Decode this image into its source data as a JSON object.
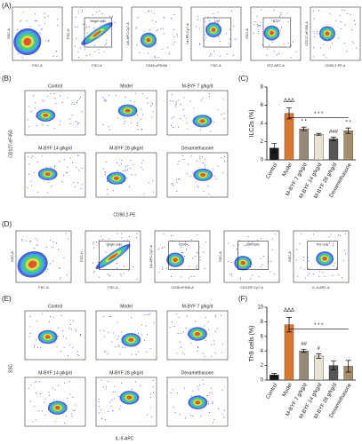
{
  "panels": {
    "a": {
      "label": "(A)",
      "plots": [
        {
          "x_label": "FSC-A",
          "y_label": "SSC-A"
        },
        {
          "x_label": "FSC-A",
          "y_label": "FSC-H",
          "gate": "Single cells"
        },
        {
          "x_label": "CD45-eF506A",
          "y_label": "Lin-APC-Cy7-A"
        },
        {
          "x_label": "FSC-A",
          "y_label": "Lin-PE-Cy7-A",
          "gate": "Lin-"
        },
        {
          "x_label": "ST2-APC-A",
          "y_label": "SSC-A",
          "gate": "ST2+"
        },
        {
          "x_label": "CD90.2-PE-A",
          "y_label": "CD127-eF450-A"
        }
      ]
    },
    "b": {
      "label": "(B)",
      "groups": [
        "Control",
        "Model",
        "M-BYF 7 g/kg/d",
        "M-BYF 14 g/kg/d",
        "M-BYF 28 g/kg/d",
        "Dexamethasone"
      ],
      "x_label": "CD90.2-PE",
      "y_label": "CD127-eF450"
    },
    "c": {
      "label": "(C)"
    },
    "d": {
      "label": "(D)",
      "plots": [
        {
          "x_label": "FSC-A",
          "y_label": "SSC-A"
        },
        {
          "x_label": "FSC-A",
          "y_label": "FSC-H",
          "gate": "Single cells"
        },
        {
          "x_label": "CD45-eF506-A",
          "y_label": "Lin-APC-Cy7-A",
          "gate": "CD45+"
        },
        {
          "x_label": "CD4-PE-Cy7-A",
          "y_label": "SSC-A",
          "gate": "CD4 cells"
        },
        {
          "x_label": "IL-9-APC-A",
          "y_label": "SSC-A",
          "gate": "Th9 cells"
        }
      ]
    },
    "e": {
      "label": "(E)",
      "groups": [
        "Control",
        "Model",
        "M-BYF 7 g/kg/d",
        "M-BYF 14 g/kg/d",
        "M-BYF 28 g/kg/d",
        "Dexamethasone"
      ],
      "x_label": "IL-9-APC",
      "y_label": "SSC"
    },
    "f": {
      "label": "(F)"
    }
  },
  "chart_data": [
    {
      "type": "bar",
      "y_label": "ILC2s (%)",
      "categories": [
        "Control",
        "Model",
        "M-BYF 7 g/kg/d",
        "M-BYF 14 g/kg/d",
        "M-BYF 28 g/kg/d",
        "Dexamethasone"
      ],
      "values": [
        1.3,
        5.1,
        3.4,
        2.8,
        2.3,
        3.2
      ],
      "errors": [
        0.5,
        0.6,
        0.2,
        0.1,
        0.2,
        0.3
      ],
      "colors": [
        "#1a1a1a",
        "#d9782f",
        "#978a76",
        "#e8e3d2",
        "#555555",
        "#a58e6c"
      ],
      "ylim": [
        0,
        8
      ],
      "yticks": [
        0,
        2,
        4,
        6,
        8
      ],
      "annotations": [
        "ΔΔΔ",
        "* *",
        "###",
        "* *",
        "* * *"
      ]
    },
    {
      "type": "bar",
      "y_label": "Th9 cells (%)",
      "categories": [
        "Control",
        "Model",
        "M-BYF 7 g/kg/d",
        "M-BYF 14 g/kg/d",
        "M-BYF 28 g/kg/d",
        "Dexamethasone"
      ],
      "values": [
        0.7,
        7.6,
        4.0,
        3.3,
        2.0,
        1.9
      ],
      "errors": [
        0.2,
        1.0,
        0.2,
        0.3,
        0.6,
        0.8
      ],
      "colors": [
        "#1a1a1a",
        "#d9782f",
        "#978a76",
        "#e8e3d2",
        "#555555",
        "#a58e6c"
      ],
      "ylim": [
        0,
        10
      ],
      "yticks": [
        0,
        2,
        4,
        6,
        8,
        10
      ],
      "annotations": [
        "ΔΔΔ",
        "##",
        "#",
        "* * *"
      ]
    }
  ]
}
